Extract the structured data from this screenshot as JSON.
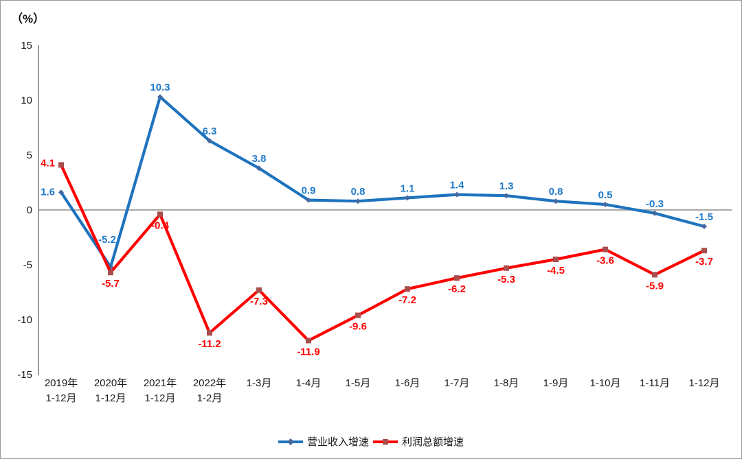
{
  "chart_data": {
    "type": "line",
    "unit_label": "（%）",
    "y_axis": {
      "min": -15,
      "max": 15,
      "step": 5,
      "ticks": [
        15,
        10,
        5,
        0,
        -5,
        -10,
        -15
      ]
    },
    "grid": "zero-line-only",
    "legend_position": "bottom-center",
    "categories": [
      [
        "2019年",
        "1-12月"
      ],
      [
        "2020年",
        "1-12月"
      ],
      [
        "2021年",
        "1-12月"
      ],
      [
        "2022年",
        "1-2月"
      ],
      [
        "1-3月"
      ],
      [
        "1-4月"
      ],
      [
        "1-5月"
      ],
      [
        "1-6月"
      ],
      [
        "1-7月"
      ],
      [
        "1-8月"
      ],
      [
        "1-9月"
      ],
      [
        "1-10月"
      ],
      [
        "1-11月"
      ],
      [
        "1-12月"
      ]
    ],
    "series": [
      {
        "name": "营业收入增速",
        "color": "#1E73BE",
        "label_color": "#1F7AC9",
        "marker": "diamond",
        "marker_color": "#44689E",
        "values": [
          1.6,
          -5.2,
          10.3,
          6.3,
          3.8,
          0.9,
          0.8,
          1.1,
          1.4,
          1.3,
          0.8,
          0.5,
          -0.3,
          -1.5
        ]
      },
      {
        "name": "利润总额增速",
        "color": "#FE0000",
        "label_color": "#FE0000",
        "marker": "square",
        "marker_color": "#A94D4D",
        "values": [
          4.1,
          -5.7,
          -0.4,
          -11.2,
          -7.3,
          -11.9,
          -9.6,
          -7.2,
          -6.2,
          -5.3,
          -4.5,
          -3.6,
          -5.9,
          -3.7
        ]
      }
    ]
  }
}
